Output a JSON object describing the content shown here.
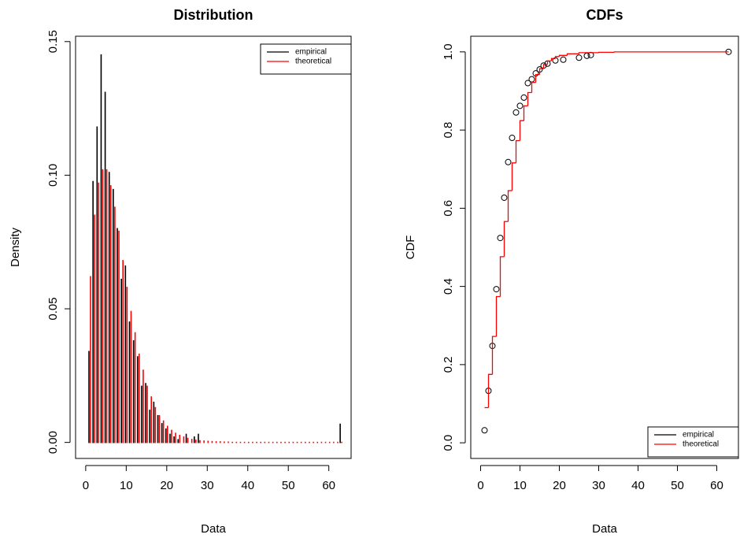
{
  "chart_data": [
    {
      "type": "bar",
      "title": "Distribution",
      "x_label": "Data",
      "y_label": "Density",
      "xlim": [
        -2.5,
        65.5
      ],
      "xticks": [
        0,
        10,
        20,
        30,
        40,
        50,
        60
      ],
      "ylim": [
        -0.006,
        0.152
      ],
      "yticks": [
        {
          "value": 0,
          "label": "0.00"
        },
        {
          "value": 0.05,
          "label": "0.05"
        },
        {
          "value": 0.1,
          "label": "0.10"
        },
        {
          "value": 0.15,
          "label": "0.15"
        }
      ],
      "legend": "topright",
      "series": [
        {
          "name": "empirical",
          "color": "#000000",
          "x": [
            1,
            2,
            3,
            4,
            5,
            6,
            7,
            8,
            9,
            10,
            11,
            12,
            13,
            14,
            15,
            16,
            17,
            18,
            19,
            20,
            21,
            22,
            23,
            25,
            27,
            28,
            63
          ],
          "values": [
            0.034,
            0.0976,
            0.118,
            0.145,
            0.131,
            0.101,
            0.0946,
            0.08,
            0.061,
            0.066,
            0.045,
            0.038,
            0.032,
            0.021,
            0.022,
            0.012,
            0.015,
            0.01,
            0.007,
            0.005,
            0.003,
            0.002,
            0.001,
            0.003,
            0.002,
            0.003,
            0.0068
          ]
        },
        {
          "name": "theoretical",
          "color": "#ff0000",
          "x": [
            1,
            2,
            3,
            4,
            5,
            6,
            7,
            8,
            9,
            10,
            11,
            12,
            13,
            14,
            15,
            16,
            17,
            18,
            19,
            20,
            21,
            22,
            23,
            24,
            25,
            26,
            27,
            28,
            29,
            30,
            31,
            32,
            33,
            34,
            35,
            36,
            37,
            38,
            39,
            40,
            41,
            42,
            43,
            44,
            45,
            46,
            47,
            48,
            49,
            50,
            51,
            52,
            53,
            54,
            55,
            56,
            57,
            58,
            59,
            60,
            61,
            62,
            63
          ],
          "values": [
            0.062,
            0.085,
            0.097,
            0.102,
            0.102,
            0.096,
            0.088,
            0.079,
            0.068,
            0.058,
            0.049,
            0.041,
            0.033,
            0.027,
            0.021,
            0.017,
            0.013,
            0.01,
            0.008,
            0.006,
            0.0045,
            0.0034,
            0.0026,
            0.002,
            0.0015,
            0.0011,
            0.0008,
            0.0006,
            0.0005,
            0.0004,
            0.0003,
            0.0002,
            0.0002,
            0.0001,
            0.0001,
            0,
            0,
            0,
            0,
            0,
            0,
            0,
            0,
            0,
            0,
            0,
            0,
            0,
            0,
            0,
            0,
            0,
            0,
            0,
            0,
            0,
            0,
            0,
            0,
            0,
            0,
            0,
            0
          ]
        }
      ]
    },
    {
      "type": "cdf",
      "title": "CDFs",
      "x_label": "Data",
      "y_label": "CDF",
      "xlim": [
        -2.5,
        65.5
      ],
      "xticks": [
        0,
        10,
        20,
        30,
        40,
        50,
        60
      ],
      "ylim": [
        -0.04,
        1.04
      ],
      "yticks": [
        {
          "value": 0,
          "label": "0.0"
        },
        {
          "value": 0.2,
          "label": "0.2"
        },
        {
          "value": 0.4,
          "label": "0.4"
        },
        {
          "value": 0.6,
          "label": "0.6"
        },
        {
          "value": 0.8,
          "label": "0.8"
        },
        {
          "value": 1,
          "label": "1.0"
        }
      ],
      "legend": "bottomright",
      "series": [
        {
          "name": "empirical",
          "color": "#000000",
          "x": [
            1,
            2,
            3,
            4,
            5,
            6,
            7,
            8,
            9,
            10,
            11,
            12,
            13,
            14,
            15,
            16,
            17,
            19,
            21,
            25,
            27,
            28,
            63
          ],
          "values": [
            0.032,
            0.133,
            0.248,
            0.393,
            0.524,
            0.627,
            0.718,
            0.78,
            0.845,
            0.862,
            0.883,
            0.92,
            0.93,
            0.945,
            0.955,
            0.965,
            0.97,
            0.978,
            0.98,
            0.985,
            0.99,
            0.992,
            1.0
          ]
        },
        {
          "name": "theoretical",
          "color": "#ff0000",
          "x": [
            1,
            2,
            3,
            4,
            5,
            6,
            7,
            8,
            9,
            10,
            11,
            12,
            13,
            14,
            15,
            16,
            17,
            18,
            19,
            20,
            22,
            25,
            30,
            34,
            63
          ],
          "values": [
            0.09,
            0.175,
            0.272,
            0.374,
            0.476,
            0.566,
            0.645,
            0.716,
            0.773,
            0.824,
            0.862,
            0.896,
            0.922,
            0.942,
            0.957,
            0.968,
            0.977,
            0.983,
            0.988,
            0.991,
            0.995,
            0.998,
            0.999,
            1.0,
            1.0
          ]
        }
      ]
    }
  ]
}
